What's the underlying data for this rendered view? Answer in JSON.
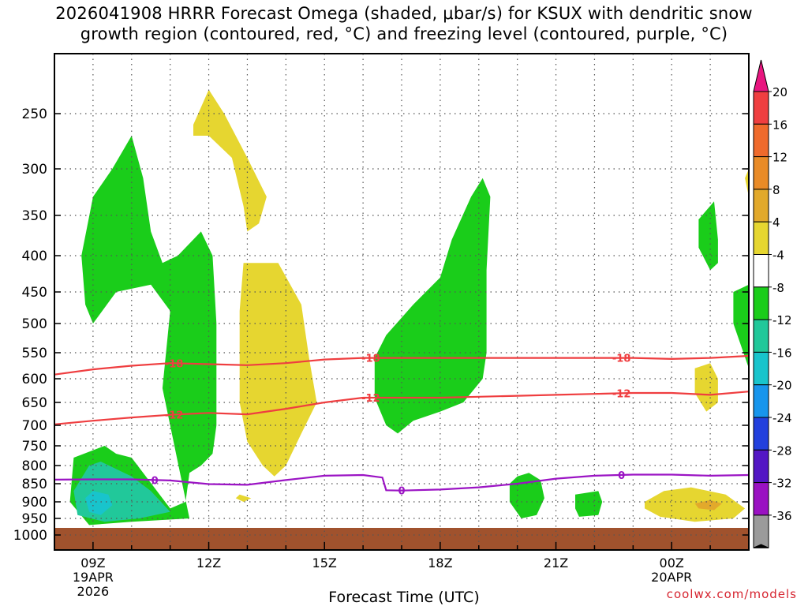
{
  "title_line1": "2026041908 HRRR Forecast Omega (shaded, μbar/s) for KSUX with dendritic snow",
  "title_line2": "growth region (contoured, red, °C) and freezing level (contoured, purple, °C)",
  "credit": "coolwx.com/models",
  "chart_data": {
    "type": "contour-time-height",
    "xlabel": "Forecast Time (UTC)",
    "ylabel": "",
    "x_ticks": [
      {
        "hour": 9,
        "lines": [
          "09Z",
          "19APR",
          "2026"
        ]
      },
      {
        "hour": 12,
        "lines": [
          "12Z"
        ]
      },
      {
        "hour": 15,
        "lines": [
          "15Z"
        ]
      },
      {
        "hour": 18,
        "lines": [
          "18Z"
        ]
      },
      {
        "hour": 21,
        "lines": [
          "21Z"
        ]
      },
      {
        "hour": 24,
        "lines": [
          "00Z",
          "20APR"
        ]
      }
    ],
    "x_range_hours": [
      8,
      26
    ],
    "y_axis": "pressure (hPa)",
    "y_ticks": [
      250,
      300,
      350,
      400,
      450,
      500,
      550,
      600,
      650,
      700,
      750,
      800,
      850,
      900,
      950,
      1000
    ],
    "y_range": [
      200,
      1000
    ],
    "colorbar": {
      "labels": [
        "20",
        "16",
        "12",
        "8",
        "4",
        "-4",
        "-8",
        "-12",
        "-16",
        "-20",
        "-24",
        "-28",
        "-32",
        "-36"
      ],
      "colors": [
        "#ef3e40",
        "#ef6a2c",
        "#e98b27",
        "#e2a92b",
        "#e6d630",
        "#ffffff",
        "#1acd1a",
        "#21c89a",
        "#18c4cc",
        "#1795ec",
        "#2240dd",
        "#5316c4",
        "#9a11c2",
        "#9b9b9b"
      ],
      "top_arrow_color": "#e8157f",
      "bottom_arrow_color": "#000000"
    },
    "contours": [
      {
        "name": "dgz -18C",
        "label": "-18",
        "color": "#ef3e40",
        "points": [
          [
            8,
            592
          ],
          [
            9,
            582
          ],
          [
            10,
            575
          ],
          [
            11,
            570
          ],
          [
            12,
            572
          ],
          [
            13,
            574
          ],
          [
            14,
            570
          ],
          [
            15,
            563
          ],
          [
            16,
            560
          ],
          [
            17,
            560
          ],
          [
            18,
            560
          ],
          [
            19,
            560
          ],
          [
            20,
            560
          ],
          [
            21,
            560
          ],
          [
            22,
            560
          ],
          [
            23,
            560
          ],
          [
            24,
            562
          ],
          [
            25,
            560
          ],
          [
            26,
            556
          ]
        ]
      },
      {
        "name": "dgz -12C",
        "label": "-12",
        "color": "#ef3e40",
        "points": [
          [
            8,
            698
          ],
          [
            9,
            690
          ],
          [
            10,
            683
          ],
          [
            11,
            677
          ],
          [
            12,
            673
          ],
          [
            13,
            676
          ],
          [
            14,
            664
          ],
          [
            15,
            650
          ],
          [
            16,
            640
          ],
          [
            17,
            640
          ],
          [
            18,
            640
          ],
          [
            19,
            638
          ],
          [
            20,
            636
          ],
          [
            21,
            634
          ],
          [
            22,
            632
          ],
          [
            23,
            630
          ],
          [
            24,
            630
          ],
          [
            25,
            634
          ],
          [
            26,
            627
          ]
        ]
      },
      {
        "name": "freezing level 0C",
        "label": "0",
        "color": "#9b14c4",
        "points": [
          [
            8,
            839
          ],
          [
            9,
            838
          ],
          [
            10,
            838
          ],
          [
            11,
            841
          ],
          [
            12,
            851
          ],
          [
            13,
            853
          ],
          [
            14,
            840
          ],
          [
            15,
            828
          ],
          [
            16,
            826
          ],
          [
            16.5,
            833
          ],
          [
            16.6,
            868
          ],
          [
            17,
            869
          ],
          [
            18,
            866
          ],
          [
            19,
            860
          ],
          [
            20,
            850
          ],
          [
            21,
            836
          ],
          [
            22,
            828
          ],
          [
            23,
            825
          ],
          [
            24,
            825
          ],
          [
            25,
            828
          ],
          [
            26,
            826
          ]
        ]
      }
    ],
    "shaded_regions": [
      {
        "level": "4 to 8",
        "color": "#e6d630",
        "points": [
          [
            11.6,
            260
          ],
          [
            12,
            230
          ],
          [
            12.4,
            250
          ],
          [
            13,
            290
          ],
          [
            13.5,
            330
          ],
          [
            13.3,
            360
          ],
          [
            13,
            370
          ],
          [
            12.9,
            340
          ],
          [
            12.6,
            290
          ],
          [
            12,
            270
          ],
          [
            11.6,
            270
          ]
        ]
      },
      {
        "level": "4 to 8",
        "color": "#e6d630",
        "points": [
          [
            12.9,
            410
          ],
          [
            13.8,
            410
          ],
          [
            14.4,
            470
          ],
          [
            14.6,
            560
          ],
          [
            14.8,
            650
          ],
          [
            14.4,
            720
          ],
          [
            14,
            800
          ],
          [
            13.7,
            830
          ],
          [
            13.4,
            800
          ],
          [
            13,
            740
          ],
          [
            12.8,
            650
          ],
          [
            12.8,
            480
          ]
        ]
      },
      {
        "level": "4 to 8",
        "color": "#e6d630",
        "points": [
          [
            12.8,
            880
          ],
          [
            13.1,
            890
          ],
          [
            12.9,
            900
          ],
          [
            12.7,
            890
          ]
        ]
      },
      {
        "level": "4 to 8",
        "color": "#e6d630",
        "points": [
          [
            24.6,
            580
          ],
          [
            25.0,
            570
          ],
          [
            25.2,
            600
          ],
          [
            25.2,
            650
          ],
          [
            24.9,
            670
          ],
          [
            24.6,
            630
          ]
        ]
      },
      {
        "level": "4 to 8",
        "color": "#e6d630",
        "points": [
          [
            25.9,
            310
          ],
          [
            26,
            300
          ],
          [
            26,
            330
          ]
        ]
      },
      {
        "level": "4 to 8",
        "color": "#e6d630",
        "points": [
          [
            23.3,
            900
          ],
          [
            23.8,
            870
          ],
          [
            24.5,
            860
          ],
          [
            25.4,
            880
          ],
          [
            25.9,
            920
          ],
          [
            25.6,
            950
          ],
          [
            24.6,
            960
          ],
          [
            23.7,
            945
          ],
          [
            23.3,
            920
          ]
        ]
      },
      {
        "level": "8 to 12",
        "color": "#e2a92b",
        "points": [
          [
            24.6,
            905
          ],
          [
            25.0,
            895
          ],
          [
            25.3,
            905
          ],
          [
            25.1,
            925
          ],
          [
            24.7,
            920
          ]
        ]
      },
      {
        "level": "-4 to -8",
        "color": "#1acd1a",
        "points": [
          [
            8.7,
            400
          ],
          [
            9.0,
            330
          ],
          [
            9.5,
            300
          ],
          [
            10,
            270
          ],
          [
            10.3,
            310
          ],
          [
            10.5,
            370
          ],
          [
            10.8,
            410
          ],
          [
            11.2,
            400
          ],
          [
            11.8,
            370
          ],
          [
            12.1,
            400
          ],
          [
            12.2,
            500
          ],
          [
            12.2,
            700
          ],
          [
            12.1,
            770
          ],
          [
            11.8,
            800
          ],
          [
            11.5,
            820
          ],
          [
            11.4,
            900
          ],
          [
            11,
            920
          ],
          [
            10,
            780
          ],
          [
            9.6,
            770
          ],
          [
            9.3,
            750
          ],
          [
            8.5,
            780
          ],
          [
            8.4,
            900
          ],
          [
            8.9,
            970
          ],
          [
            10,
            960
          ],
          [
            11.5,
            950
          ],
          [
            10.8,
            620
          ],
          [
            11,
            480
          ],
          [
            10.5,
            440
          ],
          [
            9.6,
            450
          ],
          [
            9.0,
            500
          ],
          [
            8.8,
            470
          ]
        ]
      },
      {
        "level": "-4 to -8",
        "color": "#1acd1a",
        "points": [
          [
            16.3,
            560
          ],
          [
            16.6,
            520
          ],
          [
            17.3,
            470
          ],
          [
            18,
            430
          ],
          [
            18.3,
            380
          ],
          [
            18.8,
            330
          ],
          [
            19.1,
            310
          ],
          [
            19.3,
            330
          ],
          [
            19.2,
            420
          ],
          [
            19.2,
            550
          ],
          [
            19.1,
            600
          ],
          [
            18.6,
            650
          ],
          [
            18,
            670
          ],
          [
            17.3,
            690
          ],
          [
            16.9,
            720
          ],
          [
            16.6,
            700
          ],
          [
            16.3,
            640
          ]
        ]
      },
      {
        "level": "-4 to -8",
        "color": "#1acd1a",
        "points": [
          [
            20.0,
            830
          ],
          [
            20.3,
            820
          ],
          [
            20.6,
            840
          ],
          [
            20.7,
            890
          ],
          [
            20.5,
            940
          ],
          [
            20.1,
            950
          ],
          [
            19.8,
            900
          ],
          [
            19.8,
            850
          ]
        ]
      },
      {
        "level": "-4 to -8",
        "color": "#1acd1a",
        "points": [
          [
            21.5,
            880
          ],
          [
            22.1,
            870
          ],
          [
            22.2,
            900
          ],
          [
            22.1,
            940
          ],
          [
            21.6,
            945
          ],
          [
            21.5,
            920
          ]
        ]
      },
      {
        "level": "-4 to -8",
        "color": "#1acd1a",
        "points": [
          [
            24.7,
            355
          ],
          [
            25.1,
            335
          ],
          [
            25.2,
            380
          ],
          [
            25.2,
            410
          ],
          [
            25.0,
            420
          ],
          [
            24.7,
            390
          ]
        ]
      },
      {
        "level": "-4 to -8",
        "color": "#1acd1a",
        "points": [
          [
            25.6,
            450
          ],
          [
            26,
            440
          ],
          [
            26,
            580
          ],
          [
            25.6,
            500
          ]
        ]
      },
      {
        "level": "-8 to -12",
        "color": "#21c89a",
        "points": [
          [
            8.5,
            870
          ],
          [
            8.9,
            800
          ],
          [
            9.2,
            790
          ],
          [
            10.0,
            830
          ],
          [
            10.5,
            870
          ],
          [
            11.0,
            930
          ],
          [
            10.2,
            950
          ],
          [
            9.3,
            960
          ],
          [
            8.6,
            940
          ]
        ]
      },
      {
        "level": "-12 to -16",
        "color": "#18c4cc",
        "points": [
          [
            8.8,
            890
          ],
          [
            9.0,
            870
          ],
          [
            9.4,
            880
          ],
          [
            9.5,
            910
          ],
          [
            9.2,
            940
          ],
          [
            8.9,
            930
          ]
        ]
      }
    ],
    "surface_color": "#a0522d",
    "surface_label": "ground (below ~1000 hPa)"
  }
}
